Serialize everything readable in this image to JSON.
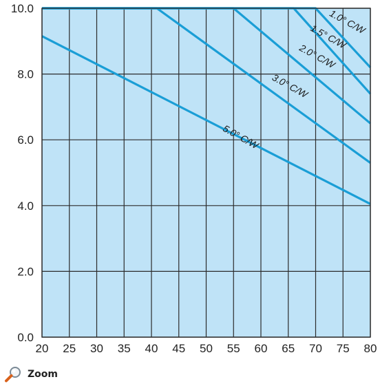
{
  "chart_data": {
    "type": "line",
    "title": "",
    "xlabel": "",
    "ylabel": "",
    "xlim": [
      20,
      80
    ],
    "ylim": [
      0,
      10
    ],
    "x_ticks": [
      "20",
      "25",
      "30",
      "35",
      "40",
      "45",
      "50",
      "55",
      "60",
      "65",
      "70",
      "75",
      "80"
    ],
    "y_ticks": [
      "0.0",
      "2.0",
      "4.0",
      "6.0",
      "8.0",
      "10.0"
    ],
    "grid": true,
    "colors": {
      "plot_background": "#bfe3f7",
      "grid": "#2b2b2b",
      "line": "#1a9ed6"
    },
    "series": [
      {
        "name": "1.0° C/W",
        "x": [
          20,
          70,
          80
        ],
        "y": [
          10.0,
          10.0,
          8.2
        ]
      },
      {
        "name": "1.5° C/W",
        "x": [
          20,
          66,
          80
        ],
        "y": [
          10.0,
          10.0,
          7.4
        ]
      },
      {
        "name": "2.0° C/W",
        "x": [
          20,
          55,
          80
        ],
        "y": [
          10.0,
          10.0,
          6.5
        ]
      },
      {
        "name": "3.0° C/W",
        "x": [
          20,
          41,
          80
        ],
        "y": [
          10.0,
          10.0,
          5.3
        ]
      },
      {
        "name": "5.0° C/W",
        "x": [
          20,
          80
        ],
        "y": [
          9.15,
          4.05
        ]
      }
    ],
    "annotations": [
      {
        "text": "1.0° C/W",
        "x": 75.5,
        "y": 9.5
      },
      {
        "text": "1.5° C/W",
        "x": 72,
        "y": 9.05
      },
      {
        "text": "2.0° C/W",
        "x": 70,
        "y": 8.45
      },
      {
        "text": "3.0° C/W",
        "x": 65,
        "y": 7.55
      },
      {
        "text": "5.0° C/W",
        "x": 56,
        "y": 6.0
      }
    ]
  },
  "toolbar": {
    "zoom_label": "Zoom",
    "zoom_icon": "magnifier-icon"
  }
}
